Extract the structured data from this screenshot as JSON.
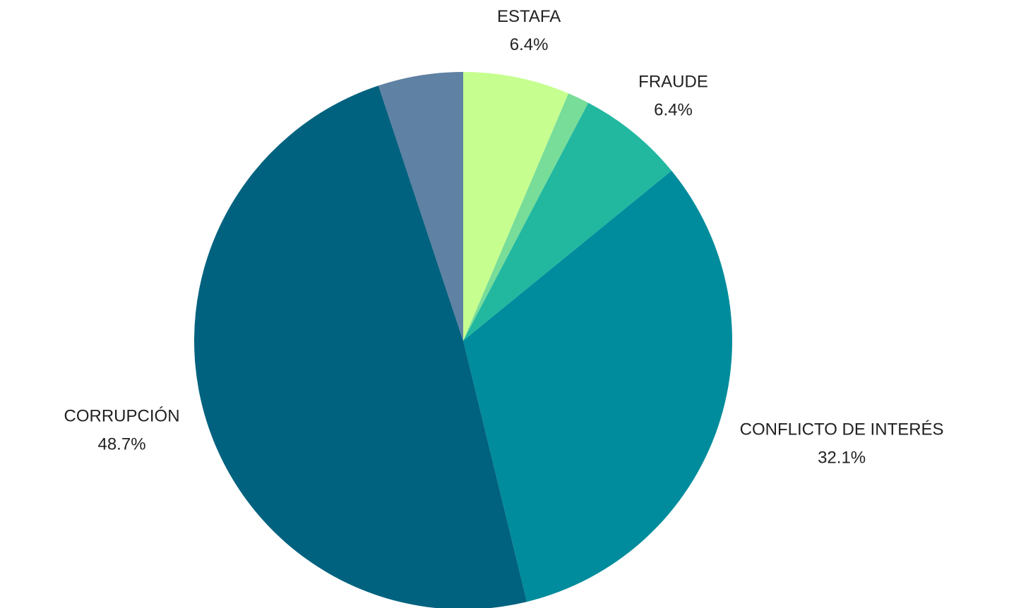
{
  "chart_data": {
    "type": "pie",
    "categories": [
      "ESTAFA",
      null,
      "FRAUDE",
      "CONFLICTO DE INTERÉS",
      "CORRUPCIÓN",
      null
    ],
    "values": [
      6.4,
      1.3,
      6.4,
      32.1,
      48.7,
      5.1
    ],
    "value_labels": [
      "6.4%",
      null,
      "6.4%",
      "32.1%",
      "48.7%",
      null
    ],
    "colors": [
      "#c6ff8f",
      "#77dd99",
      "#22b8a0",
      "#008c9c",
      "#00627f",
      "#5f81a3"
    ]
  }
}
